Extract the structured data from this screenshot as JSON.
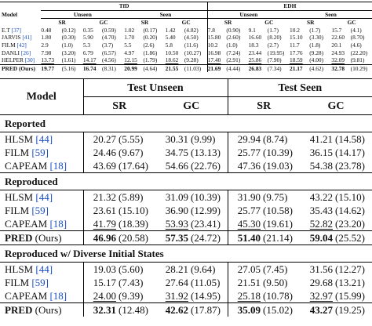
{
  "top_table": {
    "headers": {
      "model": "Model",
      "tfd": "TfD",
      "edh": "EDH",
      "unseen": "Unseen",
      "seen": "Seen",
      "sr": "SR",
      "gc": "GC"
    },
    "rows": [
      {
        "model": "E.T",
        "ref": "[37]",
        "v": [
          "0.48",
          "(0.12)",
          "0.35",
          "(0.59)",
          "1.02",
          "(0.17)",
          "1.42",
          "(4.82)",
          "7.8",
          "(0.90)",
          "9.1",
          "(1.7)",
          "10.2",
          "(1.7)",
          "15.7",
          "(4.1)"
        ]
      },
      {
        "model": "JARVIS",
        "ref": "[41]",
        "v": [
          "1.80",
          "(0.30)",
          "5.90",
          "(4.70)",
          "1.70",
          "(0.20)",
          "5.40",
          "(4.50)",
          "15.80",
          "(2.60)",
          "16.60",
          "(8.20)",
          "15.10",
          "(3.30)",
          "22.60",
          "(8.70)"
        ]
      },
      {
        "model": "FILM",
        "ref": "[42]",
        "v": [
          "2.9",
          "(1.0)",
          "5.3",
          "(3.7)",
          "5.5",
          "(2.6)",
          "5.8",
          "(11.6)",
          "10.2",
          "(1.0)",
          "18.3",
          "(2.7)",
          "11.7",
          "(1.8)",
          "20.1",
          "(4.6)"
        ]
      },
      {
        "model": "DANLI",
        "ref": "[26]",
        "v": [
          "7.98",
          "(3.20)",
          "6.79",
          "(6.57)",
          "4.97",
          "(1.86)",
          "10.50",
          "(10.27)",
          "16.98",
          "(7.24)",
          "23.44",
          "(19.95)",
          "17.76",
          "(9.28)",
          "24.93",
          "(22.20)"
        ]
      },
      {
        "model": "HELPER",
        "ref": "[30]",
        "u": true,
        "v": [
          "13.73",
          "(1.61)",
          "14.17",
          "(4.56)",
          "12.15",
          "(1.79)",
          "18.62",
          "(9.28)",
          "17.40",
          "(2.91)",
          "25.86",
          "(7.90)",
          "18.59",
          "(4.00)",
          "32.09",
          "(9.81)"
        ]
      },
      {
        "model": "PRED (Ours)",
        "ref": "",
        "bold": true,
        "v": [
          "19.77",
          "(5.16)",
          "16.74",
          "(8.31)",
          "20.99",
          "(4.64)",
          "21.55",
          "(11.03)",
          "21.69",
          "(4.44)",
          "26.83",
          "(7.34)",
          "21.17",
          "(4.62)",
          "32.78",
          "(10.29)"
        ]
      }
    ]
  },
  "main_table": {
    "headers": {
      "model": "Model",
      "test_unseen": "Test Unseen",
      "test_seen": "Test Seen",
      "sr": "SR",
      "gc": "GC"
    },
    "sections": [
      {
        "title": "Reported",
        "rows": [
          {
            "model": "HLSM",
            "ref": "[44]",
            "v": [
              "20.27",
              "(5.55)",
              "30.31",
              "(9.99)",
              "29.94",
              "(8.74)",
              "41.21",
              "(14.58)"
            ]
          },
          {
            "model": "FILM",
            "ref": "[59]",
            "v": [
              "24.46",
              "(9.67)",
              "34.75",
              "(13.13)",
              "25.77",
              "(10.39)",
              "36.15",
              "(14.17)"
            ]
          },
          {
            "model": "CAPEAM",
            "ref": "[18]",
            "v": [
              "43.69",
              "(17.64)",
              "54.66",
              "(22.76)",
              "47.36",
              "(19.03)",
              "54.38",
              "(23.78)"
            ]
          }
        ]
      },
      {
        "title": "Reproduced",
        "rows": [
          {
            "model": "HLSM",
            "ref": "[44]",
            "v": [
              "21.32",
              "(5.89)",
              "31.09",
              "(10.39)",
              "31.90",
              "(9.75)",
              "43.22",
              "(15.10)"
            ]
          },
          {
            "model": "FILM",
            "ref": "[59]",
            "v": [
              "23.61",
              "(15.10)",
              "36.90",
              "(12.99)",
              "25.77",
              "(10.58)",
              "35.43",
              "(14.62)"
            ]
          },
          {
            "model": "CAPEAM",
            "ref": "[18]",
            "u": true,
            "v": [
              "41.79",
              "(18.39)",
              "53.93",
              "(23.41)",
              "45.30",
              "(19.61)",
              "52.82",
              "(23.20)"
            ]
          }
        ],
        "ours": {
          "model": "PRED",
          "suffix": "(Ours)",
          "v": [
            "46.96",
            "(20.58)",
            "57.35",
            "(24.72)",
            "51.40",
            "(21.14)",
            "59.04",
            "(25.52)"
          ]
        }
      },
      {
        "title": "Reproduced w/ Diverse Initial States",
        "rows": [
          {
            "model": "HLSM",
            "ref": "[44]",
            "v": [
              "19.03",
              "(5.60)",
              "28.21",
              "(9.64)",
              "27.05",
              "(7.45)",
              "31.56",
              "(12.27)"
            ]
          },
          {
            "model": "FILM",
            "ref": "[59]",
            "v": [
              "15.17",
              "(7.43)",
              "27.64",
              "(11.05)",
              "21.51",
              "(9.50)",
              "29.68",
              "(13.21)"
            ]
          },
          {
            "model": "CAPEAM",
            "ref": "[18]",
            "u": true,
            "v": [
              "24.00",
              "(9.39)",
              "31.92",
              "(14.95)",
              "25.18",
              "(10.78)",
              "32.97",
              "(15.99)"
            ]
          }
        ],
        "ours": {
          "model": "PRED",
          "suffix": "(Ours)",
          "v": [
            "32.31",
            "(12.48)",
            "42.62",
            "(17.87)",
            "35.09",
            "(15.02)",
            "43.27",
            "(19.25)"
          ]
        }
      }
    ]
  }
}
